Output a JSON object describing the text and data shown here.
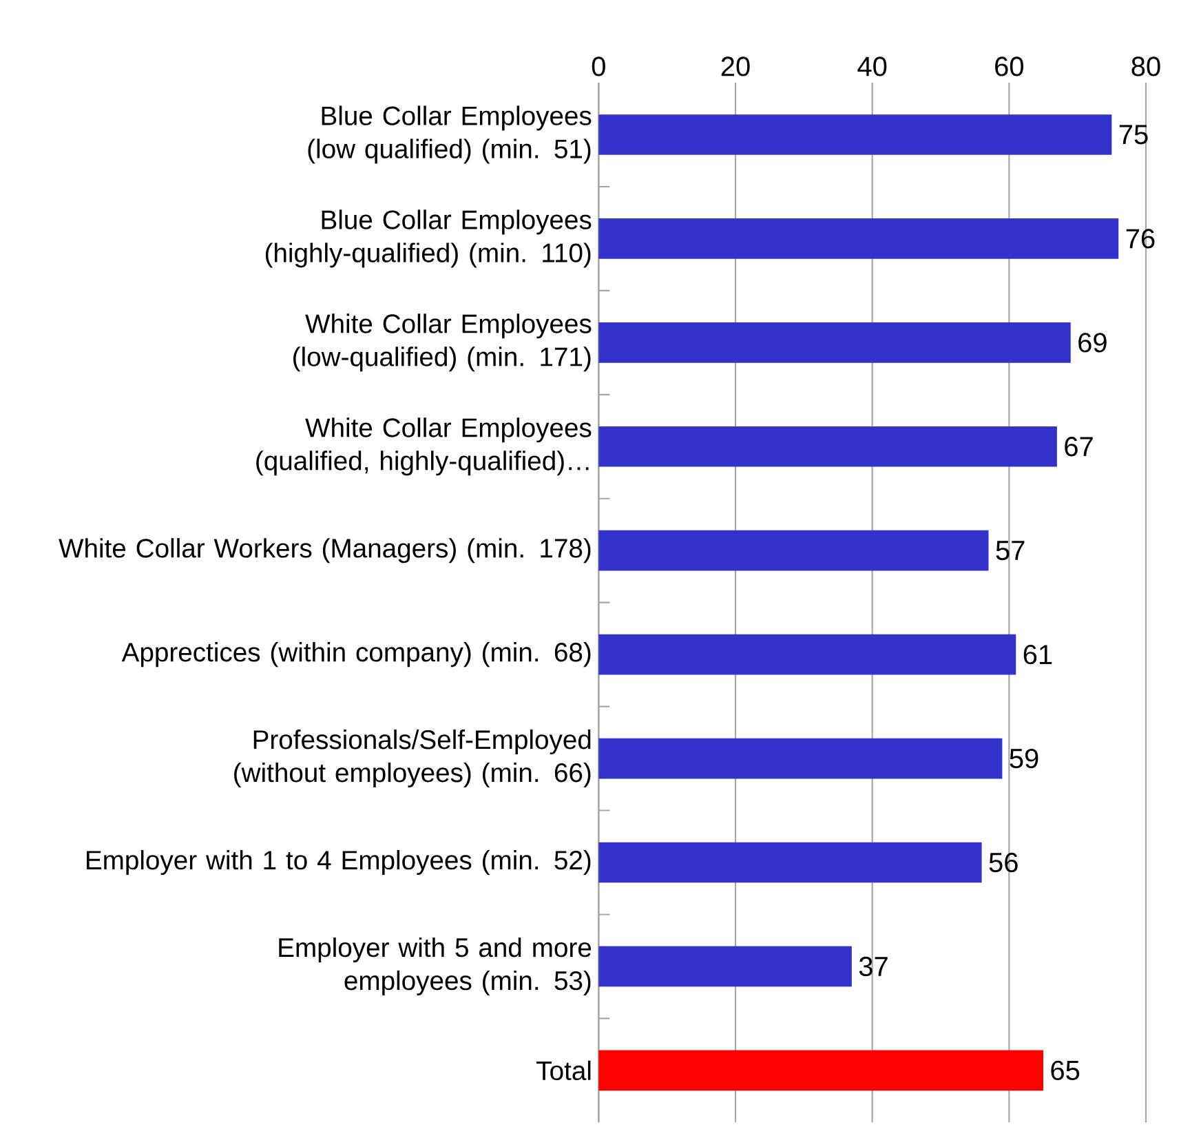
{
  "chart_data": {
    "type": "bar",
    "orientation": "horizontal",
    "categories": [
      "Blue Collar Employees  (low qualified) (min. 51)",
      "Blue Collar Employees  (highly-qualified)  (min. 110)",
      "White Collar Employees (low-qualified) (min. 171)",
      "White Collar Employees (qualified, highly-qualified)…",
      "White Collar Workers (Managers) (min. 178)",
      "Apprectices (within company) (min. 68)",
      "Professionals/Self-Employed (without employees) (min. 66)",
      "Employer with 1 to 4 Employees (min. 52)",
      "Employer with 5 and more employees (min. 53)",
      "Total"
    ],
    "values": [
      75,
      76,
      69,
      67,
      57,
      61,
      59,
      56,
      37,
      65
    ],
    "colors": [
      "#3333cc",
      "#3333cc",
      "#3333cc",
      "#3333cc",
      "#3333cc",
      "#3333cc",
      "#3333cc",
      "#3333cc",
      "#3333cc",
      "#ff0000"
    ],
    "xlim": [
      0,
      80
    ],
    "xticks": [
      0,
      20,
      40,
      60,
      80
    ],
    "grid": "x",
    "data_labels": true
  }
}
